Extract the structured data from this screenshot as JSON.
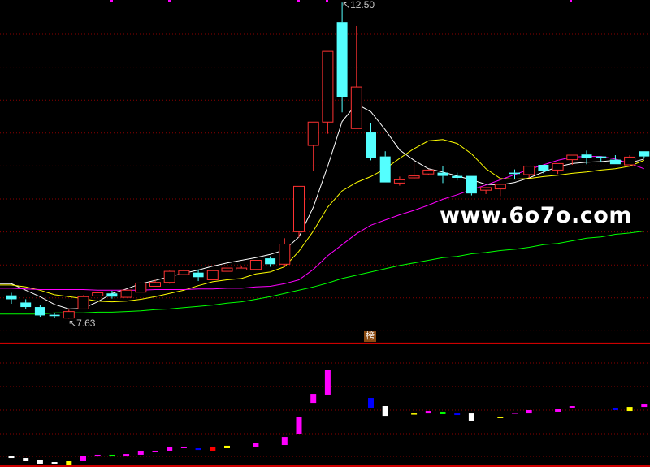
{
  "chart_data": {
    "type": "candlestick",
    "title": "",
    "xlabel": "",
    "ylabel": "",
    "ylim": [
      7.26,
      12.54
    ],
    "grid": "dotted-horizontal",
    "colors": {
      "up": "#ff3232",
      "down": "#54ffff",
      "ma1": "#ffffff",
      "ma2": "#ffff00",
      "ma3": "#ff00ff",
      "ma4": "#00ff00",
      "grid": "#8b0000",
      "divider": "#cc0000"
    },
    "annotations": {
      "high_label": "12.50",
      "low_label": "7.63"
    },
    "candles": [
      [
        7.99,
        8.03,
        7.86,
        7.93
      ],
      [
        7.88,
        7.93,
        7.78,
        7.81
      ],
      [
        7.81,
        7.84,
        7.66,
        7.68
      ],
      [
        7.69,
        7.72,
        7.64,
        7.67
      ],
      [
        7.64,
        7.77,
        7.63,
        7.74
      ],
      [
        7.78,
        7.99,
        7.78,
        7.97
      ],
      [
        7.98,
        8.03,
        7.98,
        8.03
      ],
      [
        8.02,
        8.06,
        7.94,
        7.97
      ],
      [
        7.96,
        8.07,
        7.96,
        8.07
      ],
      [
        8.04,
        8.19,
        8.04,
        8.18
      ],
      [
        8.13,
        8.23,
        8.13,
        8.19
      ],
      [
        8.19,
        8.37,
        8.17,
        8.36
      ],
      [
        8.31,
        8.39,
        8.31,
        8.37
      ],
      [
        8.34,
        8.39,
        8.21,
        8.27
      ],
      [
        8.23,
        8.37,
        8.23,
        8.37
      ],
      [
        8.36,
        8.42,
        8.36,
        8.41
      ],
      [
        8.38,
        8.44,
        8.38,
        8.41
      ],
      [
        8.39,
        8.53,
        8.39,
        8.53
      ],
      [
        8.56,
        8.59,
        8.43,
        8.47
      ],
      [
        8.47,
        8.87,
        8.43,
        8.78
      ],
      [
        8.97,
        9.67,
        8.88,
        9.67
      ],
      [
        10.3,
        10.66,
        9.91,
        10.66
      ],
      [
        10.66,
        11.75,
        10.48,
        11.75
      ],
      [
        12.2,
        12.5,
        10.81,
        11.04
      ],
      [
        10.56,
        12.14,
        10.56,
        11.2
      ],
      [
        10.5,
        10.65,
        10.07,
        10.11
      ],
      [
        10.13,
        10.21,
        9.73,
        9.73
      ],
      [
        9.72,
        9.82,
        9.68,
        9.77
      ],
      [
        9.8,
        10.03,
        9.78,
        9.83
      ],
      [
        9.86,
        9.93,
        9.85,
        9.92
      ],
      [
        9.88,
        9.98,
        9.72,
        9.83
      ],
      [
        9.83,
        9.88,
        9.76,
        9.8
      ],
      [
        9.83,
        9.83,
        9.53,
        9.56
      ],
      [
        9.61,
        9.65,
        9.55,
        9.65
      ],
      [
        9.63,
        9.7,
        9.52,
        9.7
      ],
      [
        9.88,
        9.93,
        9.78,
        9.86
      ],
      [
        9.85,
        9.98,
        9.8,
        9.98
      ],
      [
        10.0,
        10.0,
        9.87,
        9.9
      ],
      [
        9.92,
        10.02,
        9.86,
        10.02
      ],
      [
        10.08,
        10.15,
        10.0,
        10.15
      ],
      [
        10.16,
        10.22,
        10.01,
        10.11
      ],
      [
        10.13,
        10.13,
        10.05,
        10.1
      ],
      [
        10.08,
        10.15,
        10.01,
        10.01
      ],
      [
        10.0,
        10.15,
        10.0,
        10.12
      ],
      [
        10.21,
        10.21,
        10.11,
        10.13
      ]
    ],
    "candle_fields": [
      "open",
      "high",
      "low",
      "close"
    ],
    "ma_lines": [
      {
        "color": "#ffffff",
        "values": [
          8.17,
          8.07,
          7.97,
          7.85,
          7.78,
          7.79,
          7.89,
          8.02,
          8.09,
          8.17,
          8.22,
          8.28,
          8.33,
          8.38,
          8.44,
          8.49,
          8.53,
          8.57,
          8.62,
          8.69,
          8.89,
          9.35,
          9.98,
          10.67,
          10.94,
          10.82,
          10.54,
          10.23,
          10.07,
          9.94,
          9.89,
          9.83,
          9.77,
          9.7,
          9.69,
          9.73,
          9.8,
          9.89,
          9.97,
          10.02,
          10.04,
          10.05,
          10.07,
          10.03,
          10.09
        ]
      },
      {
        "color": "#ffff00",
        "values": [
          8.15,
          8.12,
          8.07,
          8.0,
          7.97,
          7.94,
          7.9,
          7.89,
          7.9,
          7.93,
          7.97,
          8.02,
          8.07,
          8.14,
          8.2,
          8.23,
          8.25,
          8.32,
          8.35,
          8.43,
          8.67,
          8.98,
          9.35,
          9.6,
          9.73,
          9.82,
          9.94,
          10.1,
          10.25,
          10.37,
          10.39,
          10.33,
          10.17,
          9.94,
          9.79,
          9.78,
          9.79,
          9.82,
          9.84,
          9.87,
          9.89,
          9.92,
          9.94,
          9.98,
          10.07
        ]
      },
      {
        "color": "#ff00ff",
        "values": [
          8.1,
          8.09,
          8.08,
          8.08,
          8.08,
          8.08,
          8.07,
          8.07,
          8.07,
          8.07,
          8.08,
          8.08,
          8.08,
          8.09,
          8.09,
          8.1,
          8.1,
          8.12,
          8.13,
          8.17,
          8.23,
          8.39,
          8.6,
          8.77,
          8.94,
          9.07,
          9.15,
          9.23,
          9.3,
          9.38,
          9.47,
          9.54,
          9.62,
          9.69,
          9.77,
          9.85,
          9.93,
          10.0,
          10.07,
          10.12,
          10.13,
          10.13,
          10.09,
          10.02,
          9.94
        ]
      },
      {
        "color": "#00ff00",
        "values": [
          7.7,
          7.7,
          7.7,
          7.72,
          7.72,
          7.72,
          7.73,
          7.73,
          7.74,
          7.75,
          7.77,
          7.78,
          7.8,
          7.82,
          7.84,
          7.87,
          7.89,
          7.93,
          7.97,
          8.02,
          8.07,
          8.12,
          8.18,
          8.25,
          8.3,
          8.35,
          8.4,
          8.45,
          8.49,
          8.53,
          8.57,
          8.59,
          8.63,
          8.65,
          8.68,
          8.7,
          8.73,
          8.77,
          8.79,
          8.83,
          8.87,
          8.89,
          8.93,
          8.95,
          8.98
        ]
      }
    ],
    "indicator": {
      "label": "榜",
      "ylim": [
        0,
        100
      ],
      "bars": [
        {
          "r": [
            6.6,
            8.6
          ],
          "c": "#ffffff"
        },
        {
          "r": [
            4.6,
            6.6
          ],
          "c": "#ffffff"
        },
        {
          "r": [
            2.0,
            5.3
          ],
          "c": "#ffffff"
        },
        {
          "r": [
            2.0,
            3.3
          ],
          "c": "#ffffff"
        },
        {
          "r": [
            1.3,
            4.0
          ],
          "c": "#ffff00"
        },
        {
          "r": [
            4.0,
            8.6
          ],
          "c": "#ff00ff"
        },
        {
          "r": [
            7.9,
            9.3
          ],
          "c": "#ff00ff"
        },
        {
          "r": [
            7.9,
            9.3
          ],
          "c": "#00ff00"
        },
        {
          "r": [
            7.9,
            9.9
          ],
          "c": "#ff00ff"
        },
        {
          "r": [
            9.3,
            12.6
          ],
          "c": "#ff00ff"
        },
        {
          "r": [
            11.3,
            12.6
          ],
          "c": "#ff00ff"
        },
        {
          "r": [
            12.6,
            15.9
          ],
          "c": "#ff00ff"
        },
        {
          "r": [
            14.6,
            15.9
          ],
          "c": "#ff00ff"
        },
        {
          "r": [
            13.2,
            15.2
          ],
          "c": "#0000ff"
        },
        {
          "r": [
            12.6,
            15.9
          ],
          "c": "#ff0000"
        },
        {
          "r": [
            15.2,
            16.6
          ],
          "c": "#ffff00"
        },
        null,
        {
          "r": [
            15.9,
            19.2
          ],
          "c": "#ff00ff"
        },
        null,
        {
          "r": [
            17.2,
            23.8
          ],
          "c": "#ff00ff"
        },
        {
          "r": [
            26.5,
            40.4
          ],
          "c": "#ff00ff"
        },
        {
          "r": [
            51.6,
            58.9
          ],
          "c": "#ff00ff"
        },
        {
          "r": [
            58.3,
            78.8
          ],
          "c": "#ff00ff"
        },
        null,
        null,
        {
          "r": [
            47.7,
            55.6
          ],
          "c": "#0000ff"
        },
        {
          "r": [
            41.0,
            49.0
          ],
          "c": "#ffffff"
        },
        null,
        {
          "r": [
            42.4,
            43.0
          ],
          "c": "#ffff00"
        },
        {
          "r": [
            43.0,
            45.0
          ],
          "c": "#ff00ff"
        },
        {
          "r": [
            42.4,
            44.4
          ],
          "c": "#00ff00"
        },
        {
          "r": [
            41.7,
            43.0
          ],
          "c": "#0000ff"
        },
        {
          "r": [
            37.1,
            43.0
          ],
          "c": "#ffffff"
        },
        null,
        {
          "r": [
            39.1,
            40.4
          ],
          "c": "#ffff00"
        },
        {
          "r": [
            43.0,
            43.7
          ],
          "c": "#ff00ff"
        },
        {
          "r": [
            43.0,
            45.7
          ],
          "c": "#ff00ff"
        },
        null,
        {
          "r": [
            44.4,
            47.0
          ],
          "c": "#ff00ff"
        },
        {
          "r": [
            47.7,
            49.0
          ],
          "c": "#ff00ff"
        },
        null,
        null,
        {
          "r": [
            45.7,
            47.7
          ],
          "c": "#0000ff"
        },
        {
          "r": [
            45.0,
            48.3
          ],
          "c": "#ffff00"
        },
        {
          "r": [
            48.3,
            50.3
          ],
          "c": "#ff00ff"
        }
      ]
    }
  },
  "watermark": "www.6o7o.com"
}
